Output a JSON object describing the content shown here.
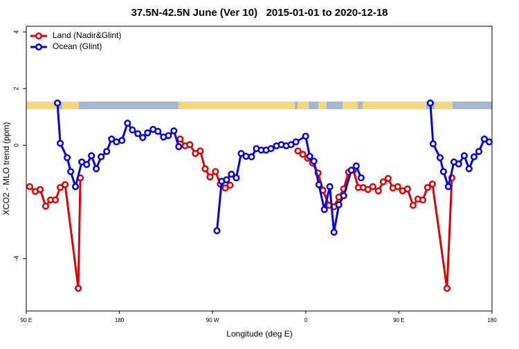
{
  "chart_data": {
    "type": "line",
    "title": "37.5N-42.5N June (Ver 10)   2015-01-01 to 2020-12-18",
    "x_label": "Longitude (deg E)",
    "y_label": "XCO2 - MLO trend (ppm)",
    "xlim": [
      90,
      540
    ],
    "ylim": [
      -5.85,
      4.2
    ],
    "xticks": [
      {
        "value": 90,
        "label": "90 E"
      },
      180,
      {
        "value": 270,
        "label": "90 W"
      },
      {
        "value": 360,
        "label": "0"
      },
      {
        "value": 450,
        "label": "90 E"
      },
      180
    ],
    "yticks": [
      -4,
      0,
      2,
      4
    ],
    "legend": "top-left",
    "series": [
      {
        "name": "Land (Nadir&Glint)",
        "color": "#e00000",
        "x": [
          93.3,
          98.7,
          103.4,
          108.7,
          113.4,
          118.1,
          122.8,
          127.5,
          140.2,
          142.2,
          null,
          238.7,
          243.4,
          248.0,
          253.4,
          258.1,
          262.8,
          267.5,
          272.8,
          277.5,
          282.2,
          286.9,
          null,
          352.5,
          357.2,
          361.9,
          366.6,
          371.9,
          376.6,
          382.6,
          387.3,
          392.0,
          396.7,
          401.4,
          406.1,
          410.8,
          415.5,
          420.1,
          424.8,
          430.2,
          434.9,
          439.6,
          444.2,
          448.9,
          453.6,
          458.3,
          463.7,
          468.4,
          473.1,
          477.7,
          482.4,
          496.5,
          501.2
        ],
        "values": [
          -1.46,
          -1.63,
          -1.56,
          -2.15,
          -1.93,
          -1.93,
          -1.49,
          -1.39,
          -5.05,
          -1.15,
          null,
          0.22,
          -0.02,
          0.02,
          -0.29,
          -0.2,
          -0.83,
          -1.12,
          -0.93,
          -1.37,
          -1.51,
          -1.41,
          null,
          -0.2,
          -0.32,
          -0.46,
          -0.63,
          -0.98,
          -1.59,
          -2.12,
          -2.17,
          -1.83,
          -1.54,
          -0.95,
          -0.88,
          -1.49,
          -1.49,
          -1.56,
          -1.46,
          -1.61,
          -1.29,
          -1.17,
          -1.51,
          -1.46,
          -1.61,
          -1.54,
          -2.12,
          -1.9,
          -1.93,
          -1.49,
          -1.37,
          -5.05,
          -1.15
        ]
      },
      {
        "name": "Ocean (Glint)",
        "color": "#0000e0",
        "x": [
          120.1,
          122.8,
          129.5,
          132.9,
          137.5,
          143.6,
          148.3,
          153.0,
          157.6,
          162.3,
          167.7,
          172.4,
          177.1,
          182.4,
          187.8,
          192.5,
          197.8,
          202.5,
          207.2,
          212.5,
          217.2,
          222.6,
          227.3,
          232.6,
          237.3,
          null,
          274.2,
          278.8,
          283.5,
          288.2,
          292.9,
          297.6,
          302.3,
          307.6,
          312.3,
          317.0,
          321.7,
          326.4,
          331.7,
          336.4,
          341.1,
          345.8,
          350.5,
          359.9,
          363.9,
          367.9,
          372.7,
          378.0,
          383.3,
          387.3,
          392.0,
          396.7,
          404.1,
          408.8,
          413.5,
          null,
          480.4,
          483.1,
          489.8,
          493.1,
          497.8,
          503.2,
          507.8,
          513.2,
          517.8,
          522.6,
          527.3,
          532.6,
          537.3
        ],
        "values": [
          1.49,
          0.07,
          -0.44,
          -0.93,
          -1.46,
          -0.59,
          -0.68,
          -0.37,
          -0.83,
          -0.41,
          -0.22,
          0.22,
          0.12,
          0.17,
          0.78,
          0.54,
          0.41,
          0.27,
          0.44,
          0.56,
          0.49,
          0.29,
          0.34,
          0.51,
          -0.05,
          null,
          -3.02,
          -1.27,
          -1.22,
          -1.02,
          -1.15,
          -0.29,
          -0.39,
          -0.41,
          -0.12,
          -0.17,
          -0.17,
          -0.12,
          -0.02,
          0.02,
          -0.02,
          0.02,
          0.12,
          0.32,
          -0.39,
          -0.56,
          -1.39,
          -2.27,
          -1.46,
          -3.07,
          -2.1,
          -1.78,
          -0.88,
          -0.73,
          -1.15,
          null,
          1.49,
          0.05,
          -0.44,
          -0.93,
          -1.46,
          -0.59,
          -0.66,
          -0.37,
          -0.83,
          -0.41,
          -0.22,
          0.22,
          0.12
        ]
      }
    ]
  }
}
